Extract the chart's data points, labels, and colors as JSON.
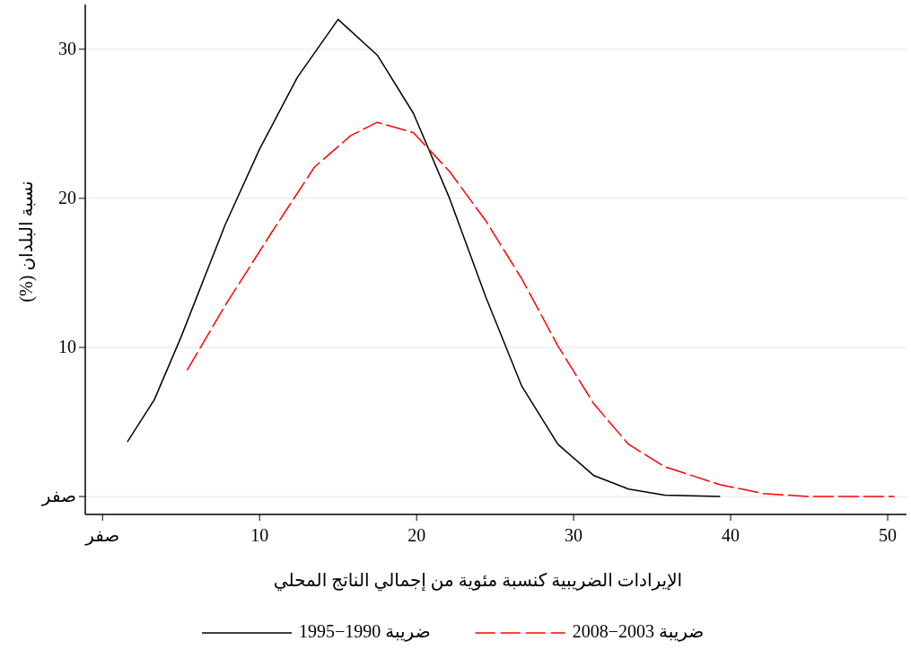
{
  "chart_data": {
    "type": "line",
    "xlabel": "الإيرادات الضريبية كنسبة مئوية من إجمالي الناتج المحلي",
    "ylabel": "نسبة البلدان (%)",
    "xlim": [
      -1.1,
      51.2
    ],
    "ylim": [
      -1.2,
      33
    ],
    "xticks": [
      {
        "value": 0,
        "label": "صفر"
      },
      10,
      20,
      30,
      40,
      50
    ],
    "yticks": [
      {
        "value": 0,
        "label": "صفر"
      },
      10,
      20,
      30
    ],
    "grid": "y",
    "legend": "bottom",
    "series": [
      {
        "name": "ضريبة 1990−1995",
        "color": "#000000",
        "line_style": "solid",
        "x": [
          1.6,
          3.3,
          5,
          7.8,
          10,
          12.4,
          15,
          17.5,
          19.8,
          22.1,
          24.4,
          26.7,
          29,
          31.3,
          33.5,
          35.8,
          39.3
        ],
        "values": [
          3.7,
          6.5,
          10.7,
          18.2,
          23.3,
          28.1,
          32,
          29.6,
          25.7,
          20,
          13.4,
          7.4,
          3.5,
          1.4,
          0.5,
          0.1,
          0
        ]
      },
      {
        "name": "ضريبة 2003−2008",
        "color": "#ff0000",
        "line_style": "dashed",
        "x": [
          5.4,
          7.8,
          10.7,
          13.5,
          15.8,
          17.5,
          19.8,
          22.1,
          24.4,
          26.7,
          29,
          31.3,
          33.5,
          35.8,
          39.3,
          42.1,
          45,
          50.4
        ],
        "values": [
          8.5,
          12.8,
          17.6,
          22.1,
          24.2,
          25.1,
          24.4,
          21.8,
          18.5,
          14.6,
          10.1,
          6.2,
          3.5,
          2,
          0.8,
          0.2,
          0,
          0
        ]
      }
    ]
  }
}
